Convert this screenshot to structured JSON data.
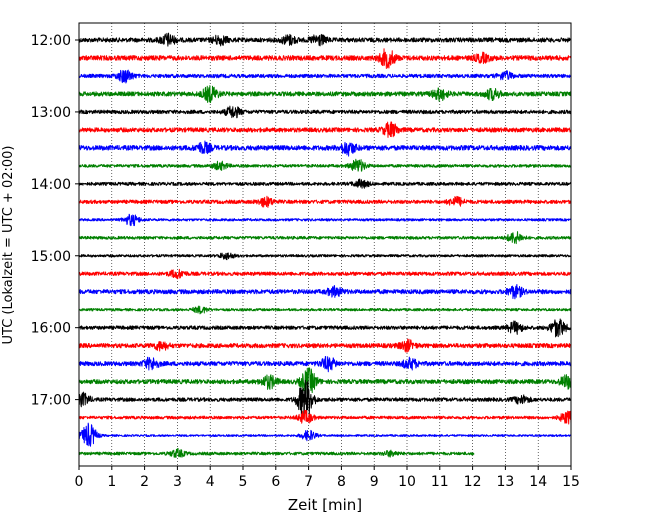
{
  "chart_data": {
    "type": "line",
    "title": "",
    "xlabel": "Zeit  [min]",
    "ylabel": "UTC (Lokalzeit = UTC + 02:00)",
    "xlim": [
      0,
      15
    ],
    "x_ticks": [
      "0",
      "1",
      "2",
      "3",
      "4",
      "5",
      "6",
      "7",
      "8",
      "9",
      "10",
      "11",
      "12",
      "13",
      "14",
      "15"
    ],
    "y_ticks": [
      "12:00",
      "13:00",
      "14:00",
      "15:00",
      "16:00",
      "17:00"
    ],
    "grid": "vertical dotted",
    "trace_interval_min": 15,
    "color_cycle": [
      "#000000",
      "#ff0000",
      "#0000ff",
      "#008000"
    ],
    "series": [
      {
        "start": "12:00",
        "color": "#000000",
        "amp": 0.18,
        "end_min": 15,
        "events": [
          [
            2.7,
            0.45
          ],
          [
            4.3,
            0.35
          ],
          [
            6.4,
            0.35
          ],
          [
            7.3,
            0.4
          ]
        ]
      },
      {
        "start": "12:15",
        "color": "#ff0000",
        "amp": 0.2,
        "end_min": 15,
        "events": [
          [
            9.4,
            0.7
          ],
          [
            12.3,
            0.3
          ]
        ]
      },
      {
        "start": "12:30",
        "color": "#0000ff",
        "amp": 0.15,
        "end_min": 15,
        "events": [
          [
            1.4,
            0.5
          ],
          [
            13.0,
            0.3
          ]
        ]
      },
      {
        "start": "12:45",
        "color": "#008000",
        "amp": 0.18,
        "end_min": 15,
        "events": [
          [
            4.0,
            0.6
          ],
          [
            11.0,
            0.45
          ],
          [
            12.6,
            0.4
          ]
        ]
      },
      {
        "start": "13:00",
        "color": "#000000",
        "amp": 0.15,
        "end_min": 15,
        "events": [
          [
            4.7,
            0.45
          ]
        ]
      },
      {
        "start": "13:15",
        "color": "#ff0000",
        "amp": 0.18,
        "end_min": 15,
        "events": [
          [
            9.5,
            0.55
          ]
        ]
      },
      {
        "start": "13:30",
        "color": "#0000ff",
        "amp": 0.2,
        "end_min": 15,
        "events": [
          [
            3.8,
            0.4
          ],
          [
            8.2,
            0.5
          ]
        ]
      },
      {
        "start": "13:45",
        "color": "#008000",
        "amp": 0.12,
        "end_min": 15,
        "events": [
          [
            8.5,
            0.5
          ],
          [
            4.3,
            0.3
          ]
        ]
      },
      {
        "start": "14:00",
        "color": "#000000",
        "amp": 0.13,
        "end_min": 15,
        "events": [
          [
            8.6,
            0.3
          ]
        ]
      },
      {
        "start": "14:15",
        "color": "#ff0000",
        "amp": 0.15,
        "end_min": 15,
        "events": [
          [
            5.7,
            0.35
          ],
          [
            11.5,
            0.35
          ]
        ]
      },
      {
        "start": "14:30",
        "color": "#0000ff",
        "amp": 0.1,
        "end_min": 15,
        "events": [
          [
            1.6,
            0.45
          ]
        ]
      },
      {
        "start": "14:45",
        "color": "#008000",
        "amp": 0.12,
        "end_min": 15,
        "events": [
          [
            13.3,
            0.45
          ]
        ]
      },
      {
        "start": "15:00",
        "color": "#000000",
        "amp": 0.1,
        "end_min": 15,
        "events": [
          [
            4.5,
            0.25
          ]
        ]
      },
      {
        "start": "15:15",
        "color": "#ff0000",
        "amp": 0.15,
        "end_min": 15,
        "events": [
          [
            3.0,
            0.3
          ]
        ]
      },
      {
        "start": "15:30",
        "color": "#0000ff",
        "amp": 0.18,
        "end_min": 15,
        "events": [
          [
            7.8,
            0.35
          ],
          [
            13.3,
            0.45
          ]
        ]
      },
      {
        "start": "15:45",
        "color": "#008000",
        "amp": 0.1,
        "end_min": 15,
        "events": [
          [
            3.7,
            0.25
          ]
        ]
      },
      {
        "start": "16:00",
        "color": "#000000",
        "amp": 0.15,
        "end_min": 15,
        "events": [
          [
            13.3,
            0.45
          ],
          [
            14.6,
            0.7
          ]
        ]
      },
      {
        "start": "16:15",
        "color": "#ff0000",
        "amp": 0.18,
        "end_min": 15,
        "events": [
          [
            2.5,
            0.3
          ],
          [
            10.0,
            0.4
          ]
        ]
      },
      {
        "start": "16:30",
        "color": "#0000ff",
        "amp": 0.18,
        "end_min": 15,
        "events": [
          [
            2.2,
            0.45
          ],
          [
            7.6,
            0.5
          ],
          [
            10.1,
            0.4
          ]
        ]
      },
      {
        "start": "16:45",
        "color": "#008000",
        "amp": 0.18,
        "end_min": 15,
        "events": [
          [
            5.8,
            0.5
          ],
          [
            7.0,
            1.0
          ],
          [
            14.9,
            0.5
          ]
        ]
      },
      {
        "start": "17:00",
        "color": "#000000",
        "amp": 0.15,
        "end_min": 15,
        "events": [
          [
            0.1,
            0.5
          ],
          [
            6.9,
            1.6
          ],
          [
            13.5,
            0.3
          ]
        ]
      },
      {
        "start": "17:15",
        "color": "#ff0000",
        "amp": 0.12,
        "end_min": 15,
        "events": [
          [
            6.9,
            0.5
          ],
          [
            14.9,
            0.5
          ]
        ]
      },
      {
        "start": "17:30",
        "color": "#0000ff",
        "amp": 0.08,
        "end_min": 15,
        "events": [
          [
            0.3,
            1.0
          ],
          [
            7.0,
            0.4
          ]
        ]
      },
      {
        "start": "17:45",
        "color": "#008000",
        "amp": 0.12,
        "end_min": 12.05,
        "events": [
          [
            3.0,
            0.3
          ],
          [
            9.5,
            0.2
          ]
        ]
      }
    ]
  }
}
